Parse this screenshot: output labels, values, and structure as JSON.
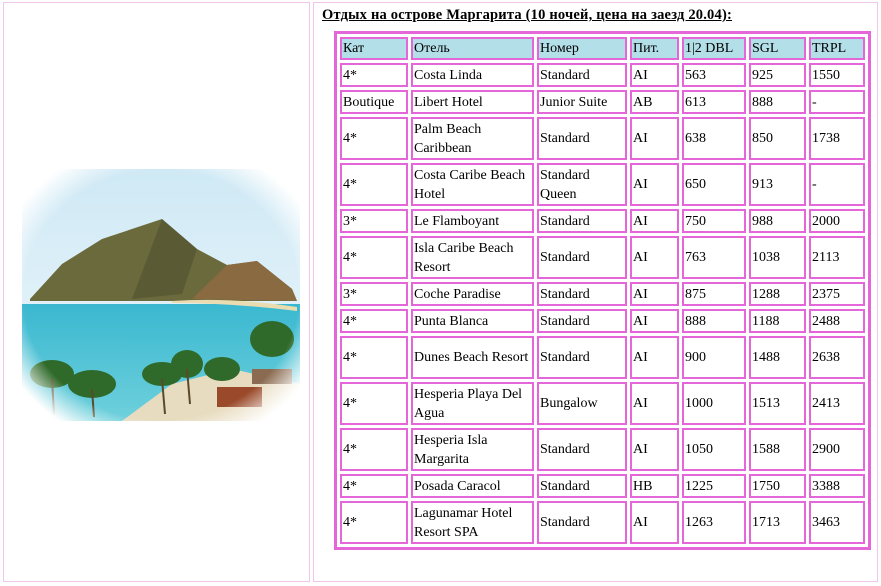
{
  "title": "Отдых на острове Маргарита (10 ночей, цена на заезд 20.04):",
  "colors": {
    "border": "#e466d8",
    "header_bg": "#b3dfe8",
    "cell_frame": "#f0c6ea"
  },
  "image": {
    "icon": "island-beach-photo"
  },
  "table": {
    "headers": [
      "Кат",
      "Отель",
      "Номер",
      "Пит.",
      "1|2 DBL",
      "SGL",
      "TRPL"
    ],
    "rows": [
      {
        "cells": [
          "4*",
          "Costa Linda",
          "Standard",
          "AI",
          "563",
          "925",
          "1550"
        ]
      },
      {
        "cells": [
          "Boutique",
          "Libert Hotel",
          "Junior Suite",
          "AB",
          "613",
          "888",
          "-"
        ]
      },
      {
        "cells": [
          "4*",
          "Palm Beach Caribbean",
          "Standard",
          "AI",
          "638",
          "850",
          "1738"
        ],
        "tall": true
      },
      {
        "cells": [
          "4*",
          "Costa Caribe Beach Hotel",
          "Standard Queen",
          "AI",
          "650",
          "913",
          "-"
        ],
        "tall": true
      },
      {
        "cells": [
          "3*",
          "Le Flamboyant",
          "Standard",
          "AI",
          "750",
          "988",
          "2000"
        ]
      },
      {
        "cells": [
          "4*",
          "Isla Caribe Beach Resort",
          "Standard",
          "AI",
          "763",
          "1038",
          "2113"
        ],
        "tall": true
      },
      {
        "cells": [
          "3*",
          "Coche Paradise",
          "Standard",
          "AI",
          "875",
          "1288",
          "2375"
        ]
      },
      {
        "cells": [
          "4*",
          "Punta Blanca",
          "Standard",
          "AI",
          "888",
          "1188",
          "2488"
        ]
      },
      {
        "cells": [
          "4*",
          "Dunes Beach Resort",
          "Standard",
          "AI",
          "900",
          "1488",
          "2638"
        ],
        "tall": true
      },
      {
        "cells": [
          "4*",
          "Hesperia Playa Del Agua",
          "Bungalow",
          "AI",
          "1000",
          "1513",
          "2413"
        ],
        "tall": true
      },
      {
        "cells": [
          "4*",
          "Hesperia Isla Margarita",
          "Standard",
          "AI",
          "1050",
          "1588",
          "2900"
        ],
        "tall": true
      },
      {
        "cells": [
          "4*",
          "Posada Caracol",
          "Standard",
          "HB",
          "1225",
          "1750",
          "3388"
        ]
      },
      {
        "cells": [
          "4*",
          "Lagunamar Hotel Resort SPA",
          "Standard",
          "AI",
          "1263",
          "1713",
          "3463"
        ],
        "tall": true
      }
    ]
  }
}
